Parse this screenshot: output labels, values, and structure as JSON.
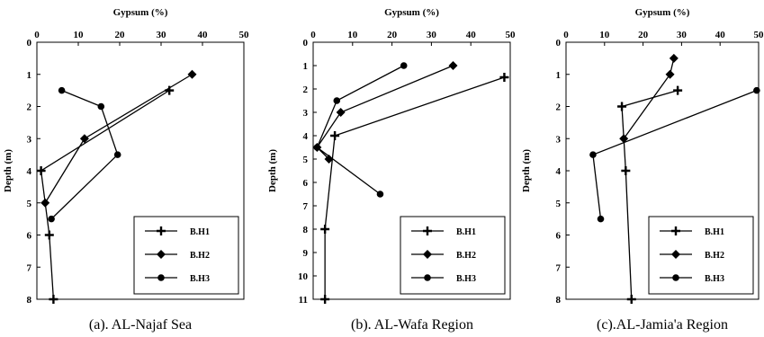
{
  "chart_data": [
    {
      "type": "line",
      "caption": "(a). AL-Najaf Sea",
      "xlabel": "Gypsum (%)",
      "ylabel": "Depth (m)",
      "xlim": [
        0,
        50
      ],
      "ylim": [
        0,
        8
      ],
      "xticks": [
        "0",
        "10",
        "20",
        "30",
        "40",
        "50"
      ],
      "yticks": [
        "0",
        "1",
        "2",
        "3",
        "4",
        "5",
        "6",
        "7",
        "8"
      ],
      "legend_position": "bottom-right",
      "series": [
        {
          "name": "B.H1",
          "marker": "plus",
          "points": [
            [
              32,
              1.5
            ],
            [
              1,
              4
            ],
            [
              3,
              6
            ],
            [
              4,
              8
            ]
          ]
        },
        {
          "name": "B.H2",
          "marker": "diamond",
          "points": [
            [
              37.5,
              1
            ],
            [
              11.5,
              3
            ],
            [
              2,
              5
            ]
          ]
        },
        {
          "name": "B.H3",
          "marker": "circle",
          "points": [
            [
              6,
              1.5
            ],
            [
              15.5,
              2
            ],
            [
              19.5,
              3.5
            ],
            [
              3.5,
              5.5
            ]
          ]
        }
      ]
    },
    {
      "type": "line",
      "caption": "(b). AL-Wafa Region",
      "xlabel": "Gypsum (%)",
      "ylabel": "Depth (m)",
      "xlim": [
        0,
        50
      ],
      "ylim": [
        0,
        11
      ],
      "xticks": [
        "0",
        "10",
        "20",
        "30",
        "40",
        "50"
      ],
      "yticks": [
        "0",
        "1",
        "2",
        "3",
        "4",
        "5",
        "6",
        "7",
        "8",
        "9",
        "10",
        "11"
      ],
      "legend_position": "bottom-right",
      "series": [
        {
          "name": "B.H1",
          "marker": "plus",
          "points": [
            [
              48.5,
              1.5
            ],
            [
              5.5,
              4
            ],
            [
              3,
              8
            ],
            [
              3,
              11
            ]
          ]
        },
        {
          "name": "B.H2",
          "marker": "diamond",
          "points": [
            [
              35.5,
              1
            ],
            [
              7,
              3
            ],
            [
              1,
              4.5
            ],
            [
              4,
              5
            ]
          ]
        },
        {
          "name": "B.H3",
          "marker": "circle",
          "points": [
            [
              23,
              1
            ],
            [
              6,
              2.5
            ],
            [
              1,
              4.5
            ],
            [
              17,
              6.5
            ]
          ]
        }
      ]
    },
    {
      "type": "line",
      "caption": "(c).AL-Jamia'a Region",
      "xlabel": "Gypsum (%)",
      "ylabel": "Depth (m)",
      "xlim": [
        0,
        50
      ],
      "ylim": [
        0,
        8
      ],
      "xticks": [
        "0",
        "10",
        "20",
        "30",
        "40",
        "50"
      ],
      "yticks": [
        "0",
        "1",
        "2",
        "3",
        "4",
        "5",
        "6",
        "7",
        "8"
      ],
      "legend_position": "bottom-right",
      "series": [
        {
          "name": "B.H1",
          "marker": "plus",
          "points": [
            [
              29,
              1.5
            ],
            [
              14.5,
              2
            ],
            [
              15.5,
              4
            ],
            [
              17,
              8
            ]
          ]
        },
        {
          "name": "B.H2",
          "marker": "diamond",
          "points": [
            [
              28,
              0.5
            ],
            [
              27,
              1
            ],
            [
              15,
              3
            ]
          ]
        },
        {
          "name": "B.H3",
          "marker": "circle",
          "points": [
            [
              49.5,
              1.5
            ],
            [
              7,
              3.5
            ],
            [
              9,
              5.5
            ]
          ]
        }
      ]
    }
  ]
}
